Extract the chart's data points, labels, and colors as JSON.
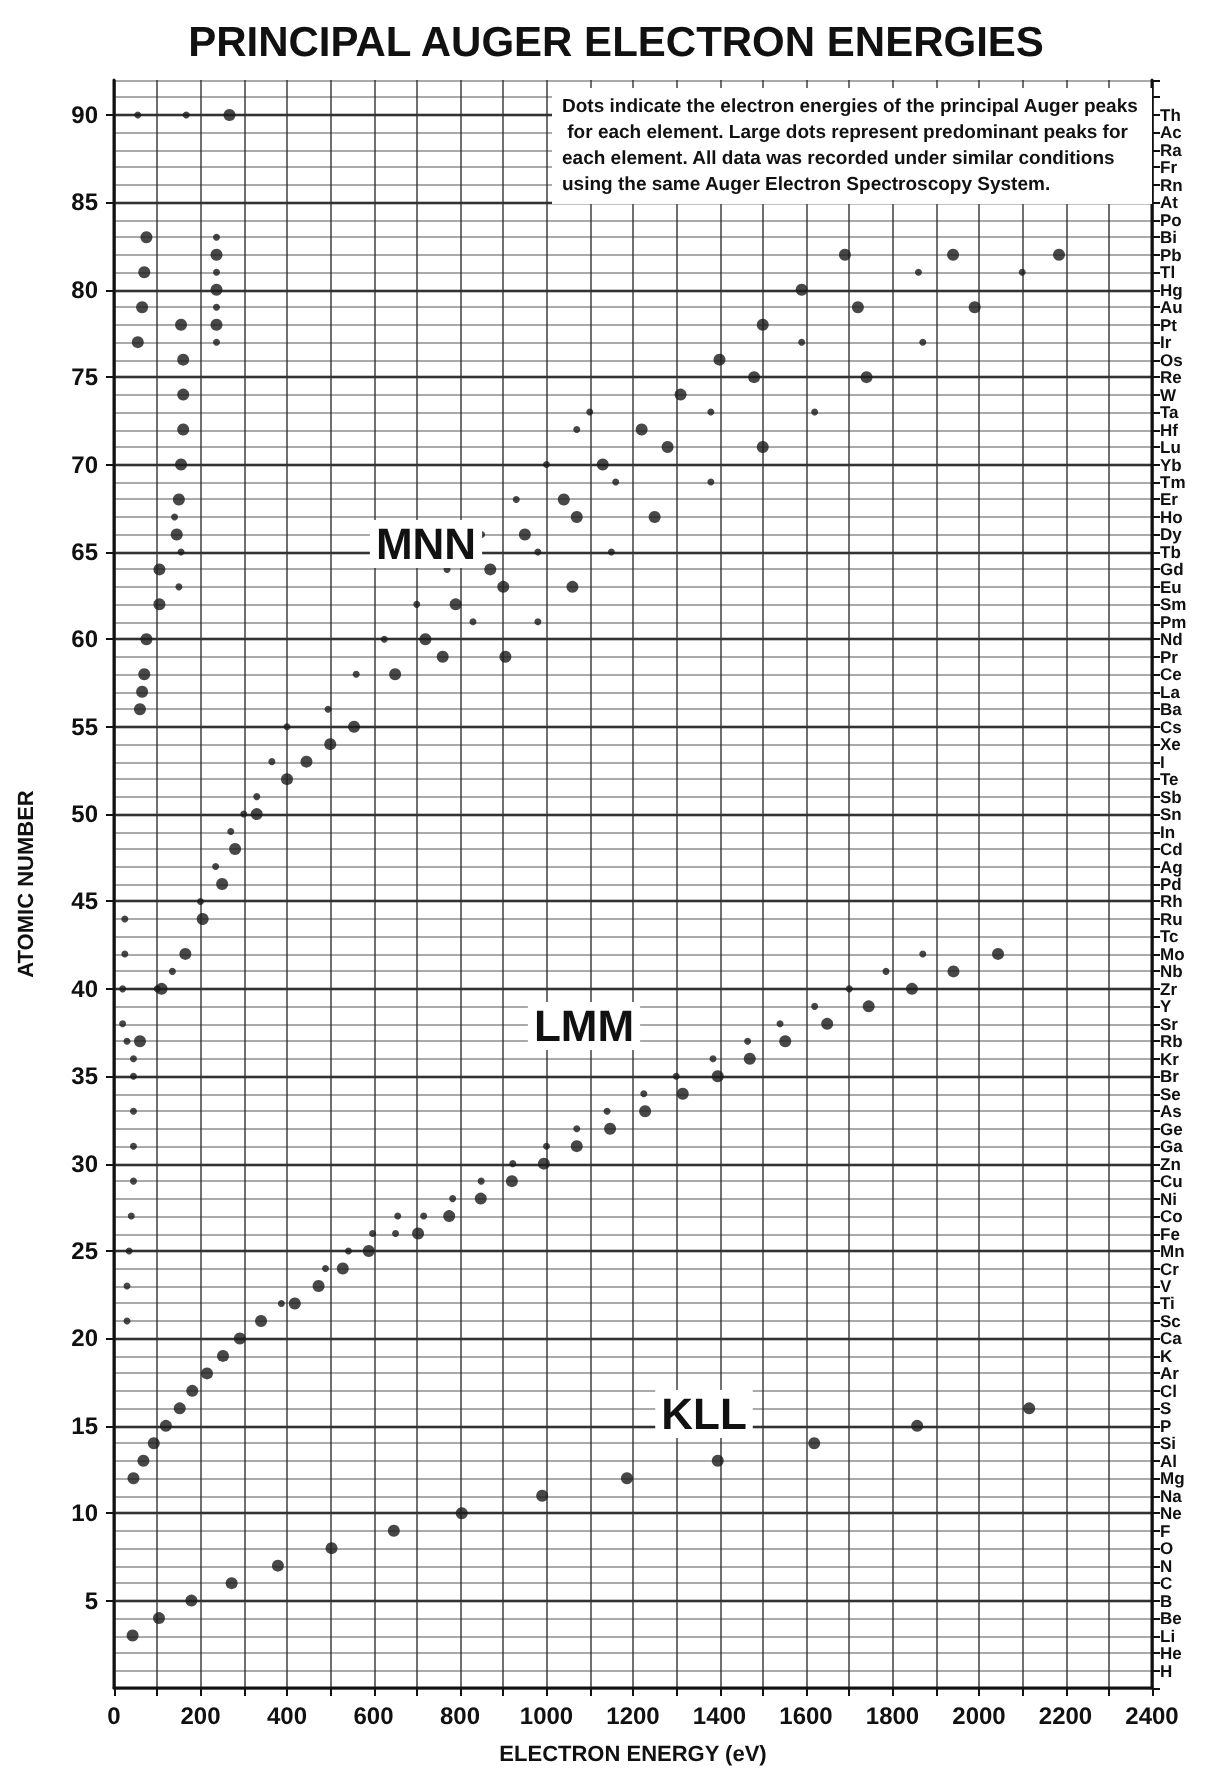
{
  "chart_data": {
    "type": "scatter",
    "title": "PRINCIPAL AUGER ELECTRON ENERGIES",
    "xlabel": "ELECTRON ENERGY (eV)",
    "ylabel": "ATOMIC NUMBER",
    "annotations": [
      "MNN",
      "LMM",
      "KLL",
      "Dots indicate the electron energies of the principal Auger peaks for each element. Large dots represent predominant peaks for each element. All data was recorded under similar conditions using the same Auger Electron Spectroscopy System."
    ],
    "series": [
      {
        "color": "#1a1a1a",
        "x": [
          43,
          104,
          179,
          272,
          379,
          503,
          647,
          804,
          990,
          1186,
          1396,
          1619,
          1857,
          2116,
          45,
          68,
          92,
          120,
          152,
          181,
          215,
          252,
          291,
          340,
          418,
          473,
          529,
          589,
          703,
          775,
          848,
          920,
          994,
          1070,
          1147,
          1228,
          1315,
          1396,
          1470,
          1552,
          1649,
          1745,
          1845,
          1941,
          2044,
          60,
          110,
          165,
          205,
          250,
          280,
          330,
          400,
          445,
          500,
          555,
          650,
          720,
          790,
          870,
          950,
          1040,
          1130,
          1220,
          1310,
          1400,
          1500,
          1590,
          1690,
          760,
          900,
          1070,
          1280,
          1480,
          1720,
          1940,
          905,
          1060,
          1250,
          1500,
          1740,
          1990,
          2185,
          60,
          65,
          70,
          75,
          105,
          105,
          145,
          150,
          155,
          160,
          160,
          160,
          155,
          55,
          65,
          70,
          75,
          237,
          237,
          237,
          267
        ],
        "values": [
          3,
          4,
          5,
          6,
          7,
          8,
          9,
          10,
          11,
          12,
          13,
          14,
          15,
          16,
          12,
          13,
          14,
          15,
          16,
          17,
          18,
          19,
          20,
          21,
          22,
          23,
          24,
          25,
          26,
          27,
          28,
          29,
          30,
          31,
          32,
          33,
          34,
          35,
          36,
          37,
          38,
          39,
          40,
          41,
          42,
          37,
          40,
          42,
          44,
          46,
          48,
          50,
          52,
          53,
          54,
          55,
          58,
          60,
          62,
          64,
          66,
          68,
          70,
          72,
          74,
          76,
          78,
          80,
          82,
          59,
          63,
          67,
          71,
          75,
          79,
          82,
          59,
          63,
          67,
          71,
          75,
          79,
          82,
          56,
          57,
          58,
          60,
          62,
          64,
          66,
          68,
          70,
          72,
          74,
          76,
          78,
          77,
          79,
          81,
          83,
          78,
          80,
          82,
          90
        ]
      },
      {
        "color": "#1a1a1a",
        "x": [
          387,
          489,
          542,
          598,
          651,
          656,
          716,
          783,
          849,
          922,
          1000,
          1070,
          1140,
          1225,
          1300,
          1385,
          1465,
          1540,
          1620,
          1700,
          1785,
          1870,
          30,
          100,
          135,
          200,
          235,
          270,
          300,
          330,
          365,
          400,
          495,
          560,
          625,
          700,
          770,
          850,
          930,
          1000,
          1070,
          1100,
          830,
          980,
          1160,
          1380,
          1590,
          1860,
          980,
          1150,
          1380,
          1620,
          1870,
          2100,
          20,
          20,
          25,
          25,
          30,
          30,
          35,
          40,
          45,
          45,
          45,
          45,
          45,
          150,
          155,
          140,
          237,
          237,
          237,
          237,
          55,
          167
        ],
        "values": [
          22,
          24,
          25,
          26,
          26,
          27,
          27,
          28,
          29,
          30,
          31,
          32,
          33,
          34,
          35,
          36,
          37,
          38,
          39,
          40,
          41,
          42,
          37,
          40,
          41,
          45,
          47,
          49,
          50,
          51,
          53,
          55,
          56,
          58,
          60,
          62,
          64,
          66,
          68,
          70,
          72,
          73,
          61,
          65,
          69,
          73,
          77,
          81,
          61,
          65,
          69,
          73,
          77,
          81,
          38,
          40,
          42,
          44,
          21,
          23,
          25,
          27,
          29,
          31,
          33,
          35,
          36,
          63,
          65,
          67,
          77,
          79,
          81,
          83,
          90,
          90
        ]
      }
    ],
    "xlim": [
      0,
      2400
    ],
    "xticks": [
      0,
      {
        "value": 100,
        "label": null
      },
      200,
      {
        "value": 300,
        "label": null
      },
      400,
      {
        "value": 500,
        "label": null
      },
      600,
      {
        "value": 700,
        "label": null
      },
      800,
      {
        "value": 900,
        "label": null
      },
      1000,
      {
        "value": 1100,
        "label": null
      },
      1200,
      {
        "value": 1300,
        "label": null
      },
      1400,
      {
        "value": 1500,
        "label": null
      },
      1600,
      {
        "value": 1700,
        "label": null
      },
      1800,
      {
        "value": 1900,
        "label": null
      },
      2000,
      {
        "value": 2100,
        "label": null
      },
      2200,
      {
        "value": 2300,
        "label": null
      },
      2400
    ],
    "ylim": [
      0,
      92
    ],
    "yticks": [
      5,
      10,
      15,
      20,
      25,
      30,
      35,
      40,
      45,
      50,
      55,
      60,
      65,
      70,
      75,
      80,
      85,
      90
    ],
    "y2_categories": [
      null,
      null,
      "Th",
      "Ac",
      "Ra",
      "Fr",
      "Rn",
      "At",
      "Po",
      "Bi",
      "Pb",
      "Tl",
      "Hg",
      "Au",
      "Pt",
      "Ir",
      "Os",
      "Re",
      "W",
      "Ta",
      "Hf",
      "Lu",
      "Yb",
      "Tm",
      "Er",
      "Ho",
      "Dy",
      "Tb",
      "Gd",
      "Eu",
      "Sm",
      "Pm",
      "Nd",
      "Pr",
      "Ce",
      "La",
      "Ba",
      "Cs",
      "Xe",
      "I",
      "Te",
      "Sb",
      "Sn",
      "In",
      "Cd",
      "Ag",
      "Pd",
      "Rh",
      "Ru",
      "Tc",
      "Mo",
      "Nb",
      "Zr",
      "Y",
      "Sr",
      "Rb",
      "Kr",
      "Br",
      "Se",
      "As",
      "Ge",
      "Ga",
      "Zn",
      "Cu",
      "Ni",
      "Co",
      "Fe",
      "Mn",
      "Cr",
      "V",
      "Ti",
      "Sc",
      "Ca",
      "K",
      "Ar",
      "Cl",
      "S",
      "P",
      "Si",
      "Al",
      "Mg",
      "Na",
      "Ne",
      "F",
      "O",
      "N",
      "C",
      "B",
      "Be",
      "Li",
      "He",
      "H",
      null
    ],
    "grid": true,
    "marker": "circle"
  }
}
